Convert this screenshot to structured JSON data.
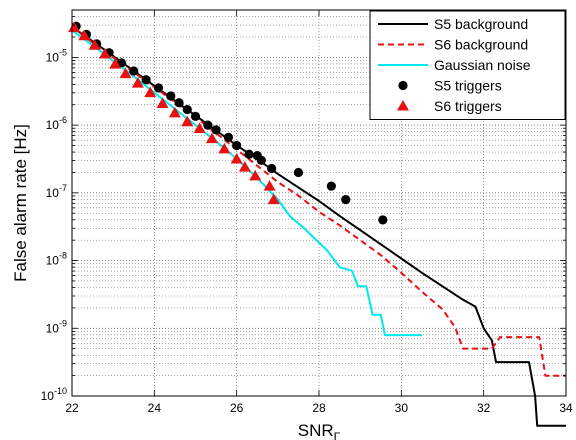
{
  "chart_data": {
    "type": "line",
    "xlabel": "SNR",
    "xlabel_sub": "Γ",
    "ylabel": "False alarm rate [Hz]",
    "xlim": [
      22,
      34
    ],
    "ylim_log10": [
      -10,
      -4.3
    ],
    "y_scale": "log",
    "grid": true,
    "legend_position": "top-right",
    "x_ticks": [
      22,
      24,
      26,
      28,
      30,
      32,
      34
    ],
    "y_ticks": [
      {
        "base": "10",
        "exp": "-10",
        "log": -10
      },
      {
        "base": "10",
        "exp": "-9",
        "log": -9
      },
      {
        "base": "10",
        "exp": "-8",
        "log": -8
      },
      {
        "base": "10",
        "exp": "-7",
        "log": -7
      },
      {
        "base": "10",
        "exp": "-6",
        "log": -6
      },
      {
        "base": "10",
        "exp": "-5",
        "log": -5
      }
    ],
    "series": [
      {
        "name": "S5 background",
        "style": "line",
        "color": "#000000",
        "dash": "",
        "points": [
          [
            22,
            -4.55
          ],
          [
            22.5,
            -4.76
          ],
          [
            23,
            -4.98
          ],
          [
            23.5,
            -5.2
          ],
          [
            24,
            -5.42
          ],
          [
            24.5,
            -5.64
          ],
          [
            25,
            -5.86
          ],
          [
            25.5,
            -6.08
          ],
          [
            26,
            -6.3
          ],
          [
            26.5,
            -6.5
          ],
          [
            27,
            -6.72
          ],
          [
            27.5,
            -6.92
          ],
          [
            28,
            -7.12
          ],
          [
            28.5,
            -7.34
          ],
          [
            29,
            -7.55
          ],
          [
            29.5,
            -7.76
          ],
          [
            30,
            -7.97
          ],
          [
            30.5,
            -8.18
          ],
          [
            31,
            -8.38
          ],
          [
            31.5,
            -8.58
          ],
          [
            31.8,
            -8.68
          ],
          [
            32,
            -9.0
          ],
          [
            32.2,
            -9.18
          ],
          [
            32.3,
            -9.5
          ],
          [
            33.1,
            -9.5
          ],
          [
            33.25,
            -10.0
          ],
          [
            33.3,
            -10.44
          ],
          [
            34,
            -10.44
          ]
        ]
      },
      {
        "name": "S6 background",
        "style": "dashed",
        "color": "#e81010",
        "dash": "6,4",
        "points": [
          [
            22,
            -4.55
          ],
          [
            22.5,
            -4.78
          ],
          [
            23,
            -5.0
          ],
          [
            23.5,
            -5.22
          ],
          [
            24,
            -5.44
          ],
          [
            24.5,
            -5.66
          ],
          [
            25,
            -5.88
          ],
          [
            25.5,
            -6.12
          ],
          [
            26,
            -6.36
          ],
          [
            26.5,
            -6.6
          ],
          [
            27,
            -6.84
          ],
          [
            27.5,
            -7.04
          ],
          [
            28,
            -7.28
          ],
          [
            28.5,
            -7.48
          ],
          [
            29,
            -7.7
          ],
          [
            29.5,
            -7.92
          ],
          [
            30,
            -8.18
          ],
          [
            30.5,
            -8.46
          ],
          [
            31,
            -8.72
          ],
          [
            31.3,
            -8.98
          ],
          [
            31.5,
            -9.3
          ],
          [
            32.2,
            -9.3
          ],
          [
            32.4,
            -9.13
          ],
          [
            33.35,
            -9.13
          ],
          [
            33.5,
            -9.7
          ],
          [
            34,
            -9.7
          ]
        ]
      },
      {
        "name": "Gaussian noise",
        "style": "line",
        "color": "#00e8f0",
        "dash": "",
        "points": [
          [
            22,
            -4.6
          ],
          [
            22.5,
            -4.82
          ],
          [
            23,
            -5.05
          ],
          [
            23.5,
            -5.28
          ],
          [
            24,
            -5.52
          ],
          [
            24.5,
            -5.76
          ],
          [
            25,
            -6.0
          ],
          [
            25.5,
            -6.24
          ],
          [
            26,
            -6.5
          ],
          [
            26.5,
            -6.78
          ],
          [
            27,
            -7.1
          ],
          [
            27.3,
            -7.35
          ],
          [
            27.6,
            -7.5
          ],
          [
            27.9,
            -7.68
          ],
          [
            28.2,
            -7.85
          ],
          [
            28.5,
            -8.1
          ],
          [
            28.8,
            -8.15
          ],
          [
            28.95,
            -8.38
          ],
          [
            29.15,
            -8.38
          ],
          [
            29.3,
            -8.8
          ],
          [
            29.5,
            -8.8
          ],
          [
            29.6,
            -9.1
          ],
          [
            30.5,
            -9.1
          ]
        ]
      },
      {
        "name": "S5 triggers",
        "style": "points",
        "marker": "circle",
        "color": "#000000",
        "points": [
          [
            22.1,
            -4.54
          ],
          [
            22.35,
            -4.66
          ],
          [
            22.6,
            -4.8
          ],
          [
            22.9,
            -4.93
          ],
          [
            23.2,
            -5.08
          ],
          [
            23.5,
            -5.2
          ],
          [
            23.8,
            -5.33
          ],
          [
            24.1,
            -5.45
          ],
          [
            24.4,
            -5.57
          ],
          [
            24.6,
            -5.67
          ],
          [
            24.8,
            -5.77
          ],
          [
            25.0,
            -5.87
          ],
          [
            25.3,
            -6.0
          ],
          [
            25.5,
            -6.07
          ],
          [
            25.8,
            -6.18
          ],
          [
            26.0,
            -6.3
          ],
          [
            26.3,
            -6.43
          ],
          [
            26.5,
            -6.45
          ],
          [
            26.6,
            -6.52
          ],
          [
            26.85,
            -6.64
          ],
          [
            27.5,
            -6.7
          ],
          [
            28.3,
            -6.9
          ],
          [
            28.65,
            -7.1
          ],
          [
            29.55,
            -7.4
          ]
        ]
      },
      {
        "name": "S6 triggers",
        "style": "points",
        "marker": "triangle",
        "color": "#e81010",
        "points": [
          [
            22.05,
            -4.56
          ],
          [
            22.3,
            -4.68
          ],
          [
            22.55,
            -4.82
          ],
          [
            22.8,
            -4.95
          ],
          [
            23.05,
            -5.1
          ],
          [
            23.3,
            -5.24
          ],
          [
            23.6,
            -5.38
          ],
          [
            23.9,
            -5.52
          ],
          [
            24.2,
            -5.68
          ],
          [
            24.5,
            -5.82
          ],
          [
            24.8,
            -5.95
          ],
          [
            25.1,
            -6.05
          ],
          [
            25.4,
            -6.2
          ],
          [
            25.7,
            -6.35
          ],
          [
            26.0,
            -6.5
          ],
          [
            26.2,
            -6.62
          ],
          [
            26.45,
            -6.75
          ],
          [
            26.8,
            -6.9
          ],
          [
            26.9,
            -7.1
          ]
        ]
      }
    ]
  }
}
